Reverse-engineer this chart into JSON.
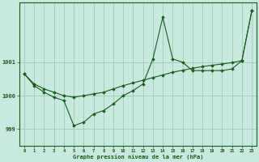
{
  "title": "Graphe pression niveau de la mer (hPa)",
  "background_color": "#c8e8e0",
  "plot_bg_color": "#c8e8e0",
  "grid_color": "#a0c8b8",
  "line_color": "#1a5c1a",
  "marker_color": "#1a5c1a",
  "xlim": [
    -0.5,
    23.5
  ],
  "ylim": [
    998.5,
    1002.8
  ],
  "yticks": [
    999,
    1000,
    1001
  ],
  "xticks": [
    0,
    1,
    2,
    3,
    4,
    5,
    6,
    7,
    8,
    9,
    10,
    11,
    12,
    13,
    14,
    15,
    16,
    17,
    18,
    19,
    20,
    21,
    22,
    23
  ],
  "series1_x": [
    0,
    1,
    2,
    3,
    4,
    5,
    6,
    7,
    8,
    9,
    10,
    11,
    12,
    13,
    14,
    15,
    16,
    17,
    18,
    19,
    20,
    21,
    22,
    23
  ],
  "series1_y": [
    1000.65,
    1000.3,
    1000.1,
    999.95,
    999.85,
    999.1,
    999.2,
    999.45,
    999.55,
    999.75,
    1000.0,
    1000.15,
    1000.35,
    1001.1,
    1002.35,
    1001.1,
    1001.0,
    1000.75,
    1000.75,
    1000.75,
    1000.75,
    1000.8,
    1001.05,
    1002.55
  ],
  "series2_x": [
    0,
    1,
    2,
    3,
    4,
    5,
    6,
    7,
    8,
    9,
    10,
    11,
    12,
    13,
    14,
    15,
    16,
    17,
    18,
    19,
    20,
    21,
    22,
    23
  ],
  "series2_y": [
    1000.65,
    1000.35,
    1000.2,
    1000.1,
    1000.0,
    999.95,
    1000.0,
    1000.05,
    1000.1,
    1000.2,
    1000.3,
    1000.38,
    1000.46,
    1000.54,
    1000.62,
    1000.7,
    1000.76,
    1000.82,
    1000.87,
    1000.91,
    1000.95,
    1000.99,
    1001.05,
    1002.55
  ]
}
